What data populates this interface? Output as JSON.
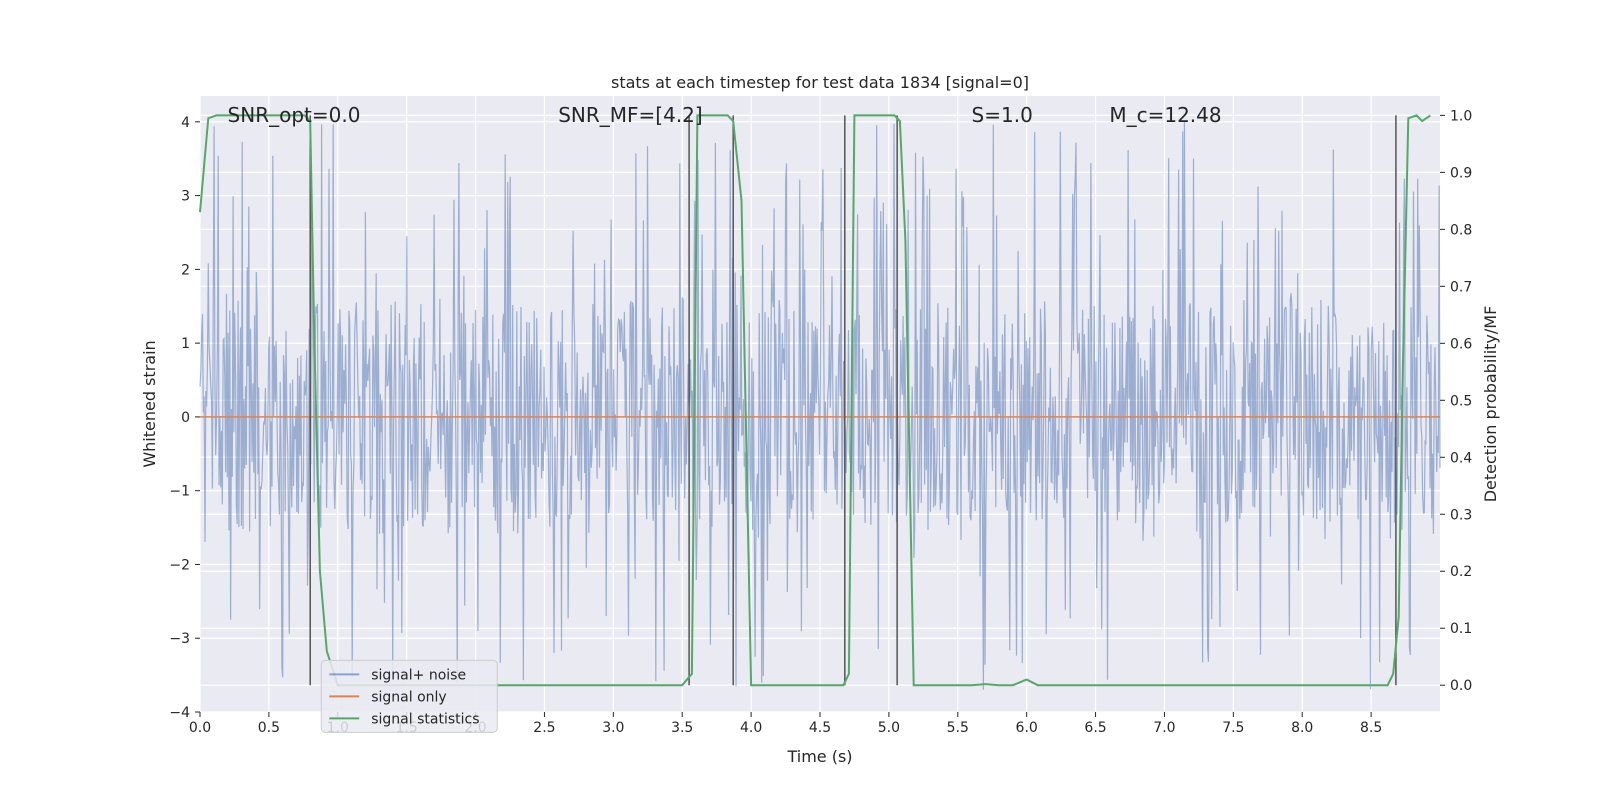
{
  "chart_data": {
    "type": "line",
    "title": "stats at each timestep for test data 1834 [signal=0]",
    "xlabel": "Time (s)",
    "ylabel": "Whitened strain",
    "y2label": "Detection probability/MF",
    "xlim": [
      0,
      9.0
    ],
    "ylim": [
      -4,
      4.35
    ],
    "y2lim": [
      -0.047,
      1.034
    ],
    "xticks": [
      0.0,
      0.5,
      1.0,
      1.5,
      2.0,
      2.5,
      3.0,
      3.5,
      4.0,
      4.5,
      5.0,
      5.5,
      6.0,
      6.5,
      7.0,
      7.5,
      8.0,
      8.5
    ],
    "xtick_labels": [
      "0.0",
      "0.5",
      "1.0",
      "1.5",
      "2.0",
      "2.5",
      "3.0",
      "3.5",
      "4.0",
      "4.5",
      "5.0",
      "5.5",
      "6.0",
      "6.5",
      "7.0",
      "7.5",
      "8.0",
      "8.5"
    ],
    "yticks": [
      4,
      3,
      2,
      1,
      0,
      -1,
      -2,
      -3,
      -4
    ],
    "ytick_labels": [
      "4",
      "3",
      "2",
      "1",
      "0",
      "−1",
      "−2",
      "−3",
      "−4"
    ],
    "y2ticks": [
      1.0,
      0.9,
      0.8,
      0.7,
      0.6,
      0.5,
      0.4,
      0.3,
      0.2,
      0.1,
      0.0
    ],
    "y2tick_labels": [
      "1.0",
      "0.9",
      "0.8",
      "0.7",
      "0.6",
      "0.5",
      "0.4",
      "0.3",
      "0.2",
      "0.1",
      "0.0"
    ],
    "grid": true,
    "legend_position": "lower-left",
    "annotations": [
      {
        "label": "SNR_opt=0.0",
        "x": 0.2,
        "y": 4.0
      },
      {
        "label": "SNR_MF=[4.2]",
        "x": 2.6,
        "y": 4.0
      },
      {
        "label": "S=1.0",
        "x": 5.6,
        "y": 4.0
      },
      {
        "label": "M_c=12.48",
        "x": 6.6,
        "y": 4.0
      }
    ],
    "vlines": [
      0.8,
      3.55,
      3.87,
      4.68,
      5.06,
      8.68
    ],
    "series": [
      {
        "name": "signal+ noise",
        "axis": "left",
        "color": "#4c72b0",
        "note_style": "dense noise trace",
        "t_start": 0.0,
        "t_end": 9.0,
        "samples": 1500,
        "core_range": [
          -1.7,
          1.7
        ],
        "peak_range": [
          -3.7,
          4.0
        ]
      },
      {
        "name": "signal only",
        "axis": "left",
        "color": "#dd8452",
        "x": [
          0.0,
          9.0
        ],
        "values": [
          0.0,
          0.0
        ]
      },
      {
        "name": "signal statistics",
        "axis": "right",
        "color": "#55a868",
        "x": [
          0.0,
          0.06,
          0.12,
          0.76,
          0.8,
          0.83,
          0.87,
          0.92,
          1.0,
          3.5,
          3.57,
          3.61,
          3.65,
          3.83,
          3.87,
          3.93,
          4.0,
          4.6,
          4.67,
          4.71,
          4.75,
          5.04,
          5.08,
          5.12,
          5.18,
          5.4,
          5.6,
          5.7,
          5.8,
          5.9,
          6.0,
          6.08,
          7.0,
          8.0,
          8.62,
          8.66,
          8.7,
          8.73,
          8.77,
          8.83,
          8.87,
          8.93
        ],
        "values": [
          0.83,
          0.995,
          1.0,
          1.0,
          0.99,
          0.6,
          0.2,
          0.06,
          0.0,
          0.0,
          0.02,
          1.0,
          1.0,
          1.0,
          0.99,
          0.85,
          0.0,
          0.0,
          0.0,
          0.02,
          1.0,
          1.0,
          0.99,
          0.78,
          0.0,
          0.0,
          0.0,
          0.002,
          0.0,
          0.0,
          0.01,
          0.0,
          0.0,
          0.0,
          0.0,
          0.02,
          0.12,
          0.55,
          0.995,
          1.0,
          0.99,
          1.0
        ]
      }
    ]
  }
}
